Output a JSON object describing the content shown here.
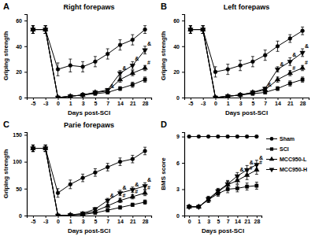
{
  "chart_data": [
    {
      "type": "line",
      "label": "A",
      "title": "Right forepaws",
      "x_label": "Days post-SCI",
      "y_label": "Griping strength",
      "categories": [
        "-5",
        "-3",
        "0",
        "1",
        "3",
        "5",
        "7",
        "14",
        "21",
        "28"
      ],
      "ylim": [
        0,
        65
      ],
      "yticks": [
        0,
        20,
        40,
        60
      ],
      "series": [
        {
          "color": "#000000",
          "marker": "circle",
          "values": [
            53,
            53,
            22,
            25,
            24,
            28,
            34,
            41,
            45,
            53
          ],
          "errors": [
            3,
            3,
            5,
            5,
            4,
            4,
            4,
            4,
            4,
            3
          ]
        },
        {
          "color": "#000000",
          "marker": "square",
          "values": [
            53,
            53,
            0,
            1,
            2,
            3,
            4,
            7,
            10,
            14
          ],
          "errors": [
            3,
            3,
            0.5,
            0.5,
            1,
            1,
            1,
            1.5,
            2,
            2
          ]
        },
        {
          "color": "#000000",
          "marker": "triangle",
          "values": [
            53,
            53,
            0,
            1,
            2,
            4,
            5,
            14,
            19,
            23
          ],
          "errors": [
            3,
            3,
            0.5,
            0.5,
            1,
            1,
            1,
            2,
            2,
            2
          ]
        },
        {
          "color": "#000000",
          "marker": "triangle-down",
          "values": [
            53,
            53,
            0,
            1,
            2,
            4,
            6,
            19,
            25,
            37
          ],
          "errors": [
            3,
            3,
            0.5,
            0.5,
            1,
            1,
            1,
            2,
            3,
            3
          ]
        }
      ],
      "annotations": [
        {
          "text": "&",
          "series": 3,
          "index": 6
        },
        {
          "text": "&",
          "series": 3,
          "index": 7
        },
        {
          "text": "&",
          "series": 3,
          "index": 8
        },
        {
          "text": "&",
          "series": 3,
          "index": 9
        },
        {
          "text": "#",
          "series": 2,
          "index": 9
        }
      ]
    },
    {
      "type": "line",
      "label": "B",
      "title": "Left forepaws",
      "x_label": "Days post-SCI",
      "y_label": "Griping strength",
      "categories": [
        "-5",
        "-3",
        "0",
        "1",
        "3",
        "5",
        "7",
        "14",
        "21",
        "28"
      ],
      "ylim": [
        0,
        65
      ],
      "yticks": [
        0,
        20,
        40,
        60
      ],
      "series": [
        {
          "color": "#000000",
          "marker": "circle",
          "values": [
            53,
            53,
            20,
            22,
            25,
            28,
            33,
            40,
            46,
            52
          ],
          "errors": [
            3,
            3,
            4,
            4,
            4,
            4,
            4,
            4,
            3,
            3
          ]
        },
        {
          "color": "#000000",
          "marker": "square",
          "values": [
            53,
            53,
            0,
            1,
            2,
            3,
            4,
            7,
            11,
            14
          ],
          "errors": [
            3,
            3,
            0.5,
            0.5,
            1,
            1,
            1,
            1.5,
            2,
            2
          ]
        },
        {
          "color": "#000000",
          "marker": "triangle",
          "values": [
            53,
            53,
            0,
            1,
            2,
            4,
            6,
            14,
            19,
            23
          ],
          "errors": [
            3,
            3,
            0.5,
            0.5,
            1,
            1,
            1,
            2,
            2,
            2
          ]
        },
        {
          "color": "#000000",
          "marker": "triangle-down",
          "values": [
            53,
            53,
            0,
            1,
            2,
            4,
            7,
            22,
            28,
            35
          ],
          "errors": [
            3,
            3,
            0.5,
            0.5,
            1,
            1,
            1,
            2,
            3,
            3
          ]
        }
      ],
      "annotations": [
        {
          "text": "&",
          "series": 3,
          "index": 6
        },
        {
          "text": "&",
          "series": 3,
          "index": 7
        },
        {
          "text": "&",
          "series": 3,
          "index": 8
        },
        {
          "text": "&",
          "series": 3,
          "index": 9
        },
        {
          "text": "#",
          "series": 2,
          "index": 8
        },
        {
          "text": "#",
          "series": 2,
          "index": 9
        }
      ]
    },
    {
      "type": "line",
      "label": "C",
      "title": "Parie forepaws",
      "x_label": "Days post-SCI",
      "y_label": "Griping strength",
      "categories": [
        "-5",
        "-3",
        "0",
        "1",
        "3",
        "5",
        "7",
        "14",
        "21",
        "28"
      ],
      "ylim": [
        0,
        155
      ],
      "yticks": [
        0,
        50,
        100,
        150
      ],
      "series": [
        {
          "color": "#000000",
          "marker": "circle",
          "values": [
            125,
            125,
            42,
            58,
            70,
            80,
            90,
            100,
            105,
            120
          ],
          "errors": [
            6,
            6,
            8,
            8,
            7,
            7,
            7,
            7,
            7,
            7
          ]
        },
        {
          "color": "#000000",
          "marker": "square",
          "values": [
            125,
            125,
            0,
            1,
            2,
            5,
            10,
            15,
            20,
            25
          ],
          "errors": [
            6,
            6,
            1,
            1,
            2,
            2,
            3,
            3,
            3,
            4
          ]
        },
        {
          "color": "#000000",
          "marker": "triangle",
          "values": [
            125,
            125,
            0,
            1,
            3,
            8,
            18,
            28,
            35,
            42
          ],
          "errors": [
            6,
            6,
            1,
            1,
            2,
            2,
            3,
            4,
            4,
            5
          ]
        },
        {
          "color": "#000000",
          "marker": "triangle-down",
          "values": [
            125,
            125,
            0,
            1,
            4,
            12,
            28,
            42,
            48,
            55
          ],
          "errors": [
            6,
            6,
            1,
            1,
            2,
            3,
            4,
            5,
            5,
            6
          ]
        }
      ],
      "annotations": [
        {
          "text": "&",
          "series": 3,
          "index": 6
        },
        {
          "text": "&",
          "series": 3,
          "index": 7
        },
        {
          "text": "&",
          "series": 3,
          "index": 8
        },
        {
          "text": "&",
          "series": 3,
          "index": 9
        },
        {
          "text": "#",
          "series": 2,
          "index": 7
        },
        {
          "text": "#",
          "series": 2,
          "index": 8
        },
        {
          "text": "#",
          "series": 2,
          "index": 9
        }
      ]
    },
    {
      "type": "line",
      "label": "D",
      "x_label": "Days post-SCI",
      "y_label": "BMS score",
      "categories": [
        "0",
        "1",
        "3",
        "5",
        "7",
        "14",
        "21",
        "28"
      ],
      "ylim": [
        0,
        9.5
      ],
      "yticks": [
        0,
        3,
        6,
        9
      ],
      "legend": "right",
      "series": [
        {
          "name": "Sham",
          "color": "#000000",
          "marker": "circle",
          "values": [
            9,
            9,
            9,
            9,
            9,
            9,
            9,
            9
          ],
          "errors": [
            0,
            0,
            0,
            0,
            0,
            0,
            0,
            0
          ]
        },
        {
          "name": "SCI",
          "color": "#000000",
          "marker": "square",
          "values": [
            1,
            1,
            1.8,
            2.5,
            3,
            3.1,
            3.3,
            3.4
          ],
          "errors": [
            0.1,
            0.1,
            0.3,
            0.3,
            0.4,
            0.4,
            0.4,
            0.4
          ]
        },
        {
          "name": "MCC950-L",
          "color": "#000000",
          "marker": "triangle",
          "values": [
            1,
            1,
            1.8,
            2.7,
            3.5,
            4,
            4.6,
            5.2
          ],
          "errors": [
            0.1,
            0.1,
            0.3,
            0.3,
            0.4,
            0.4,
            0.5,
            0.5
          ]
        },
        {
          "name": "MCC950-H",
          "color": "#000000",
          "marker": "triangle-down",
          "values": [
            1,
            1,
            1.9,
            2.8,
            3.6,
            4.5,
            5.2,
            5.8
          ],
          "errors": [
            0.1,
            0.1,
            0.3,
            0.3,
            0.4,
            0.4,
            0.5,
            0.5
          ]
        }
      ],
      "annotations": [
        {
          "text": "&",
          "series": 3,
          "index": 5
        },
        {
          "text": "&",
          "series": 3,
          "index": 6
        },
        {
          "text": "&",
          "series": 3,
          "index": 7
        },
        {
          "text": "#",
          "series": 2,
          "index": 6
        },
        {
          "text": "#",
          "series": 2,
          "index": 7
        }
      ]
    }
  ]
}
